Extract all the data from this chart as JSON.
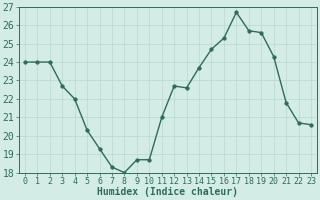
{
  "x": [
    0,
    1,
    2,
    3,
    4,
    5,
    6,
    7,
    8,
    9,
    10,
    11,
    12,
    13,
    14,
    15,
    16,
    17,
    18,
    19,
    20,
    21,
    22,
    23
  ],
  "y": [
    24.0,
    24.0,
    24.0,
    22.7,
    22.0,
    20.3,
    19.3,
    18.3,
    18.0,
    18.7,
    18.7,
    21.0,
    22.7,
    22.6,
    23.7,
    24.7,
    25.3,
    26.7,
    25.7,
    25.6,
    24.3,
    21.8,
    20.7,
    20.6
  ],
  "xlabel": "Humidex (Indice chaleur)",
  "ylim": [
    18,
    27
  ],
  "xlim": [
    -0.5,
    23.5
  ],
  "yticks": [
    18,
    19,
    20,
    21,
    22,
    23,
    24,
    25,
    26,
    27
  ],
  "xticks": [
    0,
    1,
    2,
    3,
    4,
    5,
    6,
    7,
    8,
    9,
    10,
    11,
    12,
    13,
    14,
    15,
    16,
    17,
    18,
    19,
    20,
    21,
    22,
    23
  ],
  "line_color": "#2e6b5e",
  "marker_size": 2.5,
  "bg_color": "#d4ece6",
  "grid_color": "#b8d8d0",
  "xlabel_fontsize": 7,
  "tick_fontsize": 6,
  "line_width": 1.0
}
